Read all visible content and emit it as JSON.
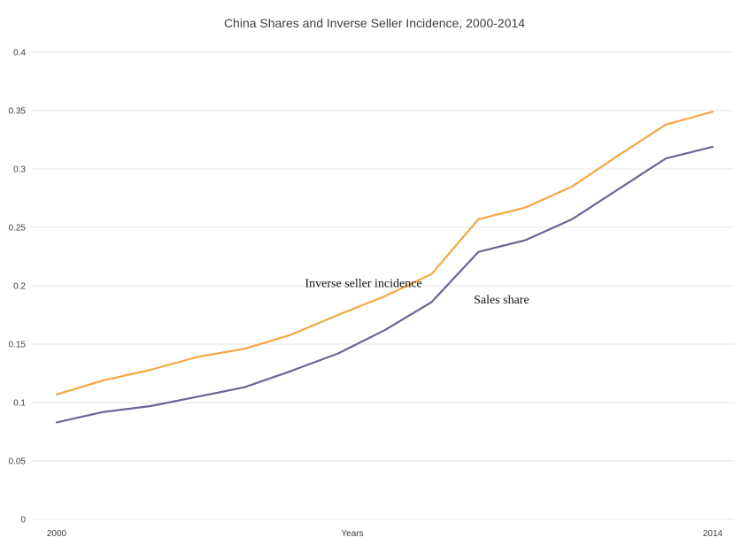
{
  "chart_data": {
    "type": "line",
    "title": "China Shares and Inverse Seller Incidence, 2000-2014",
    "xlabel": "Years",
    "ylabel": "",
    "x": [
      2000,
      2001,
      2002,
      2003,
      2004,
      2005,
      2006,
      2007,
      2008,
      2009,
      2010,
      2011,
      2012,
      2013,
      2014
    ],
    "x_tick_labels": [
      "2000",
      "2014"
    ],
    "xlim": [
      2000,
      2014
    ],
    "ylim": [
      0,
      0.4
    ],
    "y_ticks": [
      0,
      0.05,
      0.1,
      0.15,
      0.2,
      0.25,
      0.3,
      0.35,
      0.4
    ],
    "y_tick_labels": [
      "0",
      "0.05",
      "0.1",
      "0.15",
      "0.2",
      "0.25",
      "0.3",
      "0.35",
      "0.4"
    ],
    "grid": true,
    "legend": "none",
    "series": [
      {
        "key": "inverse_seller_incidence",
        "values": [
          0.107,
          0.119,
          0.128,
          0.139,
          0.146,
          0.158,
          0.175,
          0.191,
          0.21,
          0.257,
          0.267,
          0.285,
          0.312,
          0.338,
          0.349
        ],
        "color": "#f4a742"
      },
      {
        "key": "sales_share",
        "values": [
          0.083,
          0.092,
          0.097,
          0.105,
          0.113,
          0.127,
          0.142,
          0.162,
          0.186,
          0.229,
          0.239,
          0.257,
          0.283,
          0.309,
          0.319
        ],
        "color": "#6b6596"
      }
    ],
    "annotations": [
      {
        "text": "Inverse seller incidence",
        "x": 2005.3,
        "y": 0.199,
        "anchor": "start"
      },
      {
        "text": "Sales share",
        "x": 2008.9,
        "y": 0.185,
        "anchor": "start"
      }
    ]
  }
}
